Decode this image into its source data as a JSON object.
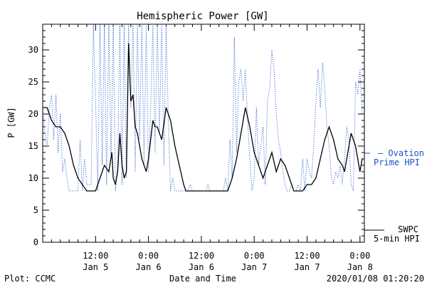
{
  "chart_data": {
    "type": "line",
    "title": "Hemispheric Power [GW]",
    "xlabel": "Date and Time",
    "ylabel": "P [GW]",
    "ylim": [
      0,
      34
    ],
    "y_ticks": [
      0,
      5,
      10,
      15,
      20,
      25,
      30
    ],
    "xlim_hours": [
      0,
      72
    ],
    "x_ticks": [
      {
        "time": "12:00",
        "date": "Jan 5",
        "h": 12
      },
      {
        "time": "0:00",
        "date": "Jan 6",
        "h": 24
      },
      {
        "time": "12:00",
        "date": "Jan 6",
        "h": 36
      },
      {
        "time": "0:00",
        "date": "Jan 7",
        "h": 48
      },
      {
        "time": "12:00",
        "date": "Jan 7",
        "h": 60
      },
      {
        "time": "0:00",
        "date": "Jan 8",
        "h": 72
      }
    ],
    "grid": false,
    "series": [
      {
        "name": "SWPC 5-min HPI",
        "label_lines": [
          "SWPC",
          "5-min HPI"
        ],
        "color": "#000000",
        "style": "solid",
        "points": [
          [
            0,
            21
          ],
          [
            1,
            21
          ],
          [
            1.5,
            20
          ],
          [
            2,
            19
          ],
          [
            3,
            18
          ],
          [
            4,
            18
          ],
          [
            5,
            17
          ],
          [
            6,
            15
          ],
          [
            7,
            12
          ],
          [
            8,
            10
          ],
          [
            9,
            9
          ],
          [
            10,
            8
          ],
          [
            11,
            8
          ],
          [
            12,
            8
          ],
          [
            13,
            10
          ],
          [
            14,
            12
          ],
          [
            15,
            11
          ],
          [
            15.7,
            14
          ],
          [
            16,
            10
          ],
          [
            16.5,
            9
          ],
          [
            17,
            11
          ],
          [
            17.5,
            17
          ],
          [
            18,
            12
          ],
          [
            18.5,
            10
          ],
          [
            19,
            11
          ],
          [
            19.5,
            31
          ],
          [
            20,
            22
          ],
          [
            20.5,
            23
          ],
          [
            21,
            18
          ],
          [
            21.5,
            17
          ],
          [
            22,
            15
          ],
          [
            22.5,
            13
          ],
          [
            23,
            12
          ],
          [
            23.5,
            11
          ],
          [
            24,
            13
          ],
          [
            24.5,
            16
          ],
          [
            25,
            19
          ],
          [
            25.5,
            18
          ],
          [
            26,
            18
          ],
          [
            26.5,
            17
          ],
          [
            27,
            16
          ],
          [
            28,
            21
          ],
          [
            29,
            19
          ],
          [
            30,
            15
          ],
          [
            31,
            12
          ],
          [
            32,
            9
          ],
          [
            32.5,
            8
          ],
          [
            33,
            8
          ],
          [
            36,
            8
          ],
          [
            39,
            8
          ],
          [
            42,
            8
          ],
          [
            43,
            10
          ],
          [
            44,
            13
          ],
          [
            45,
            17
          ],
          [
            46,
            21
          ],
          [
            47,
            18
          ],
          [
            48,
            14
          ],
          [
            49,
            12
          ],
          [
            49.5,
            11
          ],
          [
            50,
            10
          ],
          [
            51,
            12
          ],
          [
            52,
            14
          ],
          [
            53,
            11
          ],
          [
            54,
            13
          ],
          [
            55,
            12
          ],
          [
            56,
            10
          ],
          [
            56.5,
            9
          ],
          [
            57,
            8
          ],
          [
            58,
            8
          ],
          [
            59,
            8
          ],
          [
            60,
            9
          ],
          [
            61,
            9
          ],
          [
            62,
            10
          ],
          [
            63,
            13
          ],
          [
            64,
            16
          ],
          [
            65,
            18
          ],
          [
            66,
            16
          ],
          [
            67,
            13
          ],
          [
            68,
            12
          ],
          [
            68.5,
            11
          ],
          [
            69,
            13
          ],
          [
            70,
            17
          ],
          [
            71,
            15
          ],
          [
            71.5,
            13
          ],
          [
            72,
            11
          ],
          [
            72.5,
            13
          ]
        ]
      },
      {
        "name": "Ovation Prime HPI",
        "label_lines": [
          "— Ovation",
          "Prime HPI"
        ],
        "color": "#1a50c8",
        "style": "dotted",
        "points": [
          [
            0,
            21
          ],
          [
            0.5,
            17
          ],
          [
            1,
            15
          ],
          [
            1.5,
            21
          ],
          [
            2,
            23
          ],
          [
            2.5,
            16
          ],
          [
            3,
            23
          ],
          [
            3.5,
            14
          ],
          [
            4,
            20
          ],
          [
            4.5,
            11
          ],
          [
            5,
            13
          ],
          [
            5.5,
            10
          ],
          [
            6,
            8
          ],
          [
            7,
            8
          ],
          [
            8,
            8
          ],
          [
            8.5,
            16
          ],
          [
            9,
            8
          ],
          [
            9.5,
            13
          ],
          [
            10,
            9
          ],
          [
            11,
            9
          ],
          [
            11.5,
            34
          ],
          [
            12,
            22
          ],
          [
            12.5,
            8
          ],
          [
            13,
            34
          ],
          [
            13.5,
            12
          ],
          [
            14,
            34
          ],
          [
            14.5,
            9
          ],
          [
            15,
            34
          ],
          [
            15.5,
            13
          ],
          [
            16,
            34
          ],
          [
            16.5,
            8
          ],
          [
            17,
            12
          ],
          [
            17.5,
            34
          ],
          [
            18,
            9
          ],
          [
            18.5,
            34
          ],
          [
            19,
            10
          ],
          [
            19.5,
            34
          ],
          [
            20,
            21
          ],
          [
            20.5,
            34
          ],
          [
            21,
            11
          ],
          [
            21.5,
            34
          ],
          [
            22,
            16
          ],
          [
            22.5,
            34
          ],
          [
            23,
            12
          ],
          [
            23.5,
            34
          ],
          [
            24,
            11
          ],
          [
            24.5,
            21
          ],
          [
            25,
            34
          ],
          [
            25.5,
            14
          ],
          [
            26,
            34
          ],
          [
            26.5,
            17
          ],
          [
            27,
            34
          ],
          [
            27.5,
            12
          ],
          [
            28,
            34
          ],
          [
            28.5,
            19
          ],
          [
            29,
            8
          ],
          [
            29.5,
            10
          ],
          [
            30,
            8
          ],
          [
            31,
            8
          ],
          [
            32,
            8
          ],
          [
            33,
            8
          ],
          [
            33.5,
            9
          ],
          [
            34,
            8
          ],
          [
            35,
            8
          ],
          [
            36,
            8
          ],
          [
            37,
            8
          ],
          [
            37.5,
            9
          ],
          [
            38,
            8
          ],
          [
            39,
            8
          ],
          [
            40,
            8
          ],
          [
            41,
            8
          ],
          [
            41.5,
            10
          ],
          [
            42,
            8
          ],
          [
            42.5,
            16
          ],
          [
            43,
            10
          ],
          [
            43.5,
            32
          ],
          [
            44,
            14
          ],
          [
            44.5,
            25
          ],
          [
            45,
            27
          ],
          [
            45.5,
            22
          ],
          [
            46,
            27
          ],
          [
            46.5,
            19
          ],
          [
            47,
            13
          ],
          [
            47.5,
            8
          ],
          [
            48,
            10
          ],
          [
            48.5,
            21
          ],
          [
            49,
            12
          ],
          [
            49.5,
            15
          ],
          [
            50,
            18
          ],
          [
            50.5,
            9
          ],
          [
            51,
            22
          ],
          [
            51.5,
            24
          ],
          [
            52,
            30
          ],
          [
            52.5,
            27
          ],
          [
            53,
            20
          ],
          [
            53.5,
            16
          ],
          [
            54,
            14
          ],
          [
            54.5,
            11
          ],
          [
            55,
            9
          ],
          [
            55.5,
            8
          ],
          [
            56,
            8
          ],
          [
            56.5,
            9
          ],
          [
            57,
            8
          ],
          [
            57.5,
            8
          ],
          [
            58,
            9
          ],
          [
            58.5,
            8
          ],
          [
            59,
            13
          ],
          [
            59.5,
            8
          ],
          [
            60,
            13
          ],
          [
            60.5,
            11
          ],
          [
            61,
            10
          ],
          [
            61.5,
            15
          ],
          [
            62,
            22
          ],
          [
            62.5,
            27
          ],
          [
            63,
            21
          ],
          [
            63.5,
            28
          ],
          [
            64,
            24
          ],
          [
            64.5,
            18
          ],
          [
            65,
            15
          ],
          [
            65.5,
            10
          ],
          [
            66,
            9
          ],
          [
            66.5,
            11
          ],
          [
            67,
            10
          ],
          [
            67.5,
            12
          ],
          [
            68,
            9
          ],
          [
            68.5,
            13
          ],
          [
            69,
            18
          ],
          [
            69.5,
            16
          ],
          [
            70,
            9
          ],
          [
            70.5,
            8
          ],
          [
            71,
            25
          ],
          [
            71.5,
            23
          ],
          [
            72,
            27
          ],
          [
            72.5,
            20
          ]
        ]
      }
    ]
  },
  "footer": {
    "left": "Plot: CCMC",
    "right": "2020/01/08 01:20:20"
  }
}
